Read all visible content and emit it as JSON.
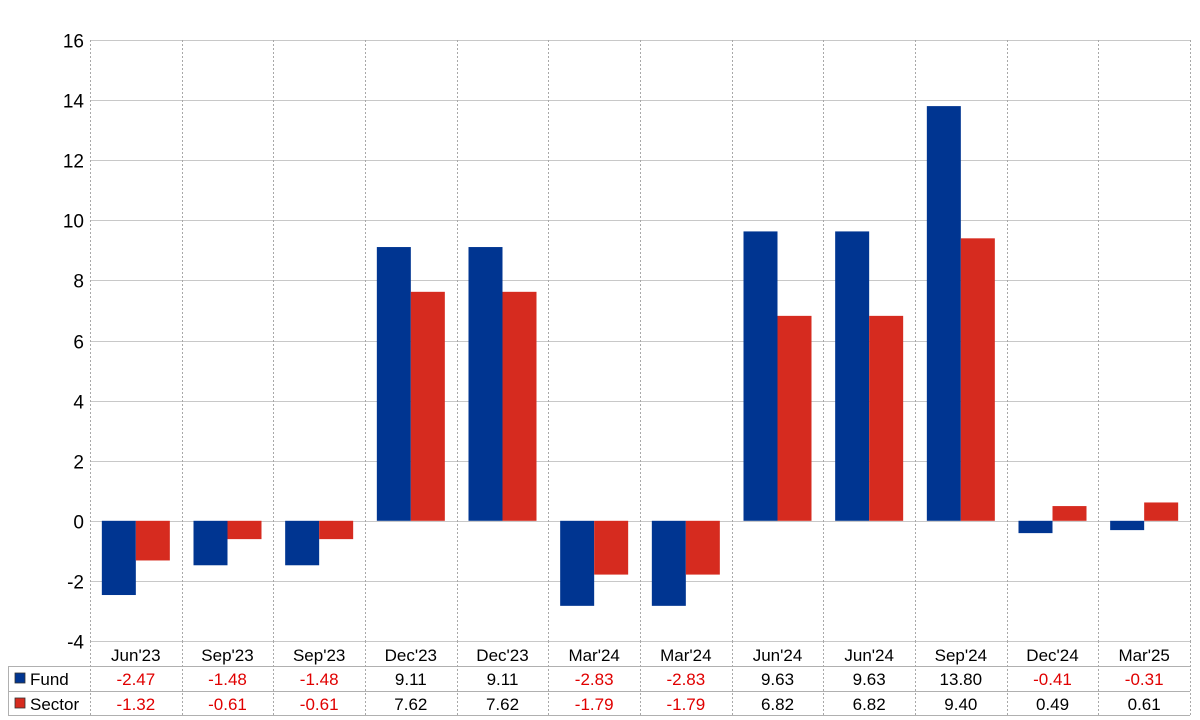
{
  "chart_data": {
    "type": "bar",
    "categories": [
      "Jun'23",
      "Sep'23",
      "Sep'23",
      "Dec'23",
      "Dec'23",
      "Mar'24",
      "Mar'24",
      "Jun'24",
      "Jun'24",
      "Sep'24",
      "Dec'24",
      "Mar'25"
    ],
    "series": [
      {
        "name": "Fund",
        "color": "#003591",
        "values": [
          -2.47,
          -1.48,
          -1.48,
          9.11,
          9.11,
          -2.83,
          -2.83,
          9.63,
          9.63,
          13.8,
          -0.41,
          -0.31
        ],
        "labels": [
          "-2.47",
          "-1.48",
          "-1.48",
          "9.11",
          "9.11",
          "-2.83",
          "-2.83",
          "9.63",
          "9.63",
          "13.80",
          "-0.41",
          "-0.31"
        ]
      },
      {
        "name": "Sector",
        "color": "#d62b1f",
        "values": [
          -1.32,
          -0.61,
          -0.61,
          7.62,
          7.62,
          -1.79,
          -1.79,
          6.82,
          6.82,
          9.4,
          0.49,
          0.61
        ],
        "labels": [
          "-1.32",
          "-0.61",
          "-0.61",
          "7.62",
          "7.62",
          "-1.79",
          "-1.79",
          "6.82",
          "6.82",
          "9.40",
          "0.49",
          "0.61"
        ]
      }
    ],
    "y_ticks": [
      "16",
      "14",
      "12",
      "10",
      "8",
      "6",
      "4",
      "2",
      "0",
      "-2",
      "-4"
    ],
    "ylim": [
      -4,
      16
    ],
    "grid": true,
    "legend": "data table below chart",
    "negative_label_color": "#e00000",
    "positive_label_color": "#000000"
  }
}
